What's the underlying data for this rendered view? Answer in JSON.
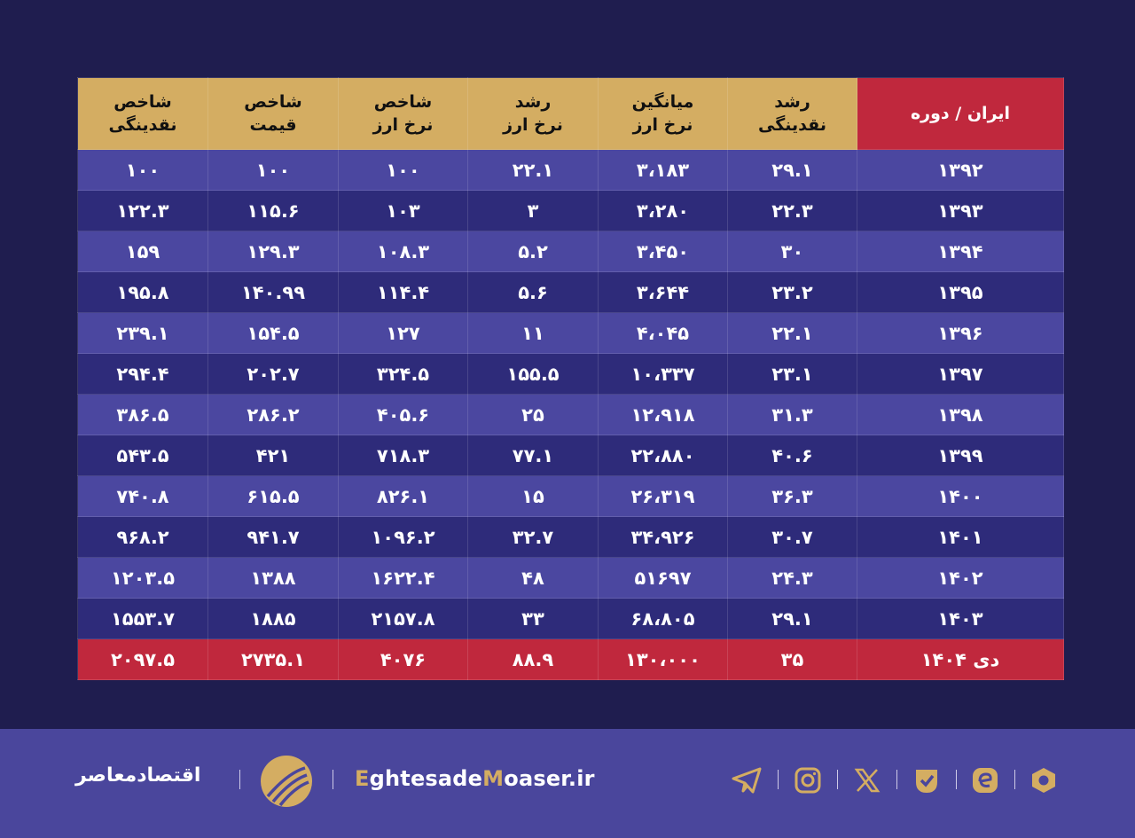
{
  "table": {
    "headers": [
      "ایران  /  دوره",
      "رشد\nنقدینگی",
      "میانگین\nنرخ ارز",
      "رشد\nنرخ ارز",
      "شاخص\nنرخ ارز",
      "شاخص\nقیمت",
      "شاخص\nنقدینگی"
    ],
    "rows": [
      [
        "۱۳۹۲",
        "۲۹.۱",
        "۳،۱۸۳",
        "۲۲.۱",
        "۱۰۰",
        "۱۰۰",
        "۱۰۰"
      ],
      [
        "۱۳۹۳",
        "۲۲.۳",
        "۳،۲۸۰",
        "۳",
        "۱۰۳",
        "۱۱۵.۶",
        "۱۲۲.۳"
      ],
      [
        "۱۳۹۴",
        "۳۰",
        "۳،۴۵۰",
        "۵.۲",
        "۱۰۸.۳",
        "۱۲۹.۳",
        "۱۵۹"
      ],
      [
        "۱۳۹۵",
        "۲۳.۲",
        "۳،۶۴۴",
        "۵.۶",
        "۱۱۴.۴",
        "۱۴۰.۹۹",
        "۱۹۵.۸"
      ],
      [
        "۱۳۹۶",
        "۲۲.۱",
        "۴،۰۴۵",
        "۱۱",
        "۱۲۷",
        "۱۵۴.۵",
        "۲۳۹.۱"
      ],
      [
        "۱۳۹۷",
        "۲۳.۱",
        "۱۰،۳۳۷",
        "۱۵۵.۵",
        "۳۲۴.۵",
        "۲۰۲.۷",
        "۲۹۴.۴"
      ],
      [
        "۱۳۹۸",
        "۳۱.۳",
        "۱۲،۹۱۸",
        "۲۵",
        "۴۰۵.۶",
        "۲۸۶.۲",
        "۳۸۶.۵"
      ],
      [
        "۱۳۹۹",
        "۴۰.۶",
        "۲۲،۸۸۰",
        "۷۷.۱",
        "۷۱۸.۳",
        "۴۲۱",
        "۵۴۳.۵"
      ],
      [
        "۱۴۰۰",
        "۳۶.۳",
        "۲۶،۳۱۹",
        "۱۵",
        "۸۲۶.۱",
        "۶۱۵.۵",
        "۷۴۰.۸"
      ],
      [
        "۱۴۰۱",
        "۳۰.۷",
        "۳۴،۹۲۶",
        "۳۲.۷",
        "۱۰۹۶.۲",
        "۹۴۱.۷",
        "۹۶۸.۲"
      ],
      [
        "۱۴۰۲",
        "۲۴.۳",
        "۵۱۶۹۷",
        "۴۸",
        "۱۶۲۲.۴",
        "۱۳۸۸",
        "۱۲۰۳.۵"
      ],
      [
        "۱۴۰۳",
        "۲۹.۱",
        "۶۸،۸۰۵",
        "۳۳",
        "۲۱۵۷.۸",
        "۱۸۸۵",
        "۱۵۵۳.۷"
      ],
      [
        "دی ۱۴۰۴",
        "۳۵",
        "۱۳۰،۰۰۰",
        "۸۸.۹",
        "۴۰۷۶",
        "۲۷۳۵.۱",
        "۲۰۹۷.۵"
      ]
    ]
  },
  "footer": {
    "brand_fa": "اقتصادمعاصر",
    "site_e": "E",
    "site_mid": "ghtesade",
    "site_m": "M",
    "site_end": "oaser.ir",
    "social_icons": [
      "telegram-icon",
      "instagram-icon",
      "x-icon",
      "eitaa-icon",
      "rubika-icon",
      "bale-icon"
    ]
  },
  "colors": {
    "background": "#1f1d4f",
    "header_gold": "#d4ad62",
    "accent_red": "#c0283d",
    "row_light": "#4b47a0",
    "row_dark": "#2e2b7a",
    "footer": "#4a469c"
  }
}
